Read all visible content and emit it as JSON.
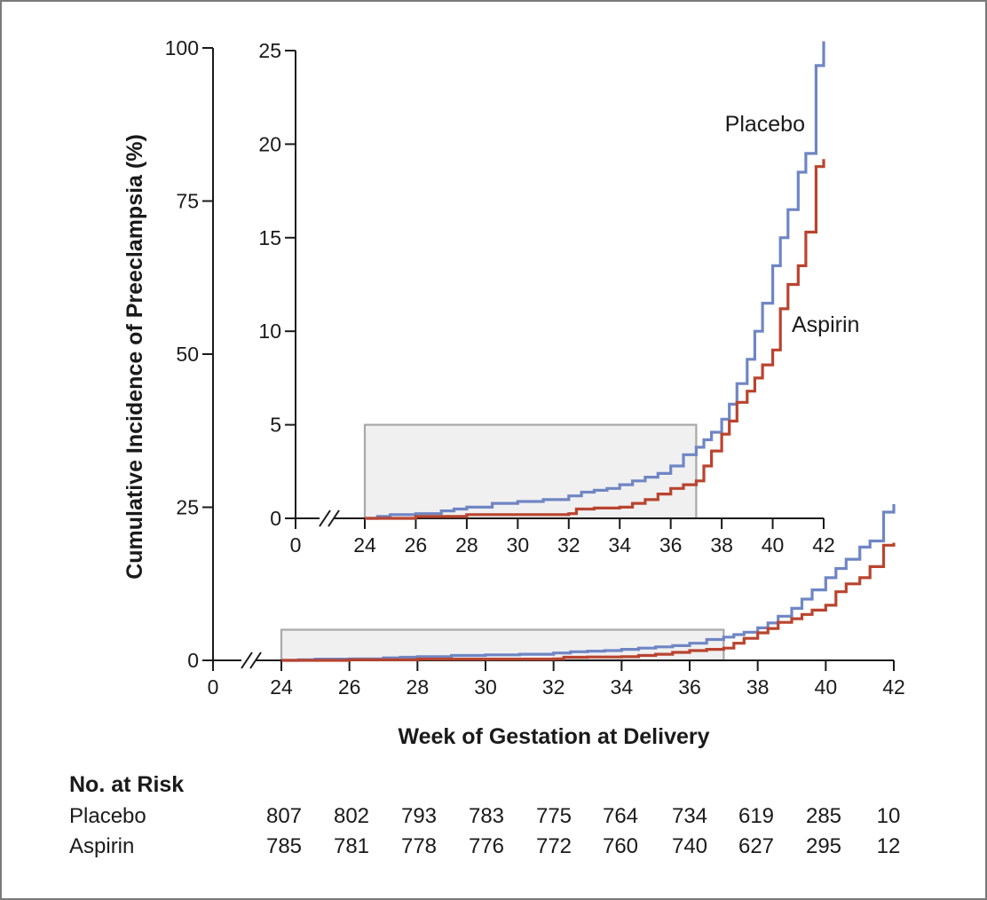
{
  "chart_data": {
    "type": "line",
    "subtype": "kaplan-meier-cumulative-incidence-step",
    "ylabel": "Cumulative Incidence of Preeclampsia (%)",
    "xlabel": "Week of Gestation at Delivery",
    "colors": {
      "placebo": "#6f86c4",
      "aspirin": "#b9442f",
      "inset_box_fill": "#f0f0f0",
      "inset_box_stroke": "#a8a8a8",
      "axis": "#1a1a1a"
    },
    "main": {
      "xlim": [
        24,
        42
      ],
      "ylim": [
        0,
        100
      ],
      "x_ticks": [
        "0",
        "24",
        "26",
        "28",
        "30",
        "32",
        "34",
        "36",
        "38",
        "40",
        "42"
      ],
      "y_ticks": [
        "0",
        "25",
        "50",
        "75",
        "100"
      ],
      "highlight_box": {
        "x_range": [
          24,
          37
        ],
        "y_range": [
          0,
          5
        ]
      }
    },
    "inset": {
      "xlim": [
        24,
        42
      ],
      "ylim": [
        0,
        25
      ],
      "x_ticks": [
        "0",
        "24",
        "26",
        "28",
        "30",
        "32",
        "34",
        "36",
        "38",
        "40",
        "42"
      ],
      "y_ticks": [
        "0",
        "5",
        "10",
        "15",
        "20",
        "25"
      ],
      "highlight_box": {
        "x_range": [
          24,
          37
        ],
        "y_range": [
          0,
          5
        ]
      },
      "annotations": {
        "placebo": "Placebo",
        "aspirin": "Aspirin"
      }
    },
    "series": [
      {
        "name": "Placebo",
        "color": "#6f86c4",
        "x": [
          24,
          24.5,
          25,
          26,
          27,
          27.5,
          28,
          29,
          30,
          31,
          32,
          32.5,
          33,
          33.5,
          34,
          34.5,
          35,
          35.5,
          36,
          36.5,
          37,
          37.3,
          37.6,
          38,
          38.3,
          38.6,
          39,
          39.3,
          39.6,
          40,
          40.3,
          40.6,
          41,
          41.3,
          41.7,
          42
        ],
        "y": [
          0,
          0.1,
          0.2,
          0.25,
          0.4,
          0.5,
          0.6,
          0.8,
          0.9,
          1.0,
          1.2,
          1.4,
          1.5,
          1.6,
          1.8,
          2.0,
          2.2,
          2.4,
          2.8,
          3.4,
          3.8,
          4.2,
          4.6,
          5.3,
          6.1,
          7.2,
          8.5,
          10.0,
          11.5,
          13.5,
          15.0,
          16.5,
          18.5,
          19.5,
          24.2,
          25.5
        ]
      },
      {
        "name": "Aspirin",
        "color": "#b9442f",
        "x": [
          24,
          26,
          28,
          30,
          32,
          32.3,
          33,
          34,
          34.5,
          35,
          35.5,
          36,
          36.5,
          37,
          37.3,
          37.6,
          38,
          38.3,
          38.6,
          39,
          39.3,
          39.6,
          40,
          40.3,
          40.6,
          41,
          41.3,
          41.7,
          42
        ],
        "y": [
          0,
          0.1,
          0.2,
          0.2,
          0.25,
          0.5,
          0.55,
          0.6,
          0.8,
          1.0,
          1.3,
          1.6,
          1.8,
          2.0,
          2.8,
          3.6,
          4.5,
          5.2,
          6.2,
          6.8,
          7.5,
          8.2,
          9.0,
          11.2,
          12.5,
          13.5,
          15.3,
          18.8,
          19.2
        ]
      }
    ],
    "risk_table": {
      "title": "No. at Risk",
      "rows": [
        {
          "label": "Placebo",
          "values": [
            "807",
            "802",
            "793",
            "783",
            "775",
            "764",
            "734",
            "619",
            "285",
            "10"
          ]
        },
        {
          "label": "Aspirin",
          "values": [
            "785",
            "781",
            "778",
            "776",
            "772",
            "760",
            "740",
            "627",
            "295",
            "12"
          ]
        }
      ]
    }
  }
}
